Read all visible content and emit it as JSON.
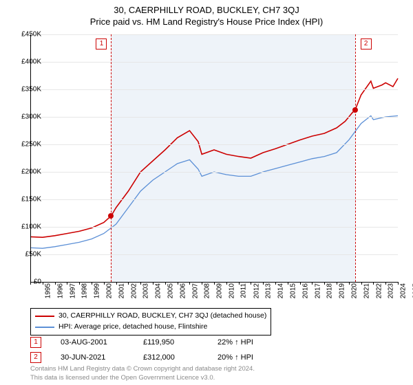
{
  "title_line1": "30, CAERPHILLY ROAD, BUCKLEY, CH7 3QJ",
  "title_line2": "Price paid vs. HM Land Registry's House Price Index (HPI)",
  "chart": {
    "type": "line",
    "background_color": "#ffffff",
    "band_color": "#eef3f9",
    "grid_color": "#e6e6e6",
    "axis_color": "#000000",
    "y": {
      "min": 0,
      "max": 450000,
      "step": 50000,
      "labels": [
        "£0",
        "£50K",
        "£100K",
        "£150K",
        "£200K",
        "£250K",
        "£300K",
        "£350K",
        "£400K",
        "£450K"
      ]
    },
    "x": {
      "min": 1995,
      "max": 2025,
      "labels": [
        "1995",
        "1996",
        "1997",
        "1998",
        "1999",
        "2000",
        "2001",
        "2002",
        "2003",
        "2004",
        "2005",
        "2006",
        "2007",
        "2008",
        "2009",
        "2010",
        "2011",
        "2012",
        "2013",
        "2014",
        "2015",
        "2016",
        "2017",
        "2018",
        "2019",
        "2020",
        "2021",
        "2022",
        "2023",
        "2024",
        "2025"
      ],
      "band_start": 2001.6,
      "band_end": 2021.5
    },
    "series": [
      {
        "name": "property",
        "label": "30, CAERPHILLY ROAD, BUCKLEY, CH7 3QJ (detached house)",
        "color": "#cc0000",
        "width": 1.6,
        "points": [
          [
            1995,
            82000
          ],
          [
            1996,
            81000
          ],
          [
            1997,
            84000
          ],
          [
            1998,
            88000
          ],
          [
            1999,
            92000
          ],
          [
            2000,
            98000
          ],
          [
            2001,
            108000
          ],
          [
            2001.6,
            119950
          ],
          [
            2002,
            135000
          ],
          [
            2003,
            165000
          ],
          [
            2004,
            200000
          ],
          [
            2005,
            220000
          ],
          [
            2006,
            240000
          ],
          [
            2007,
            262000
          ],
          [
            2008,
            275000
          ],
          [
            2008.7,
            255000
          ],
          [
            2009,
            232000
          ],
          [
            2010,
            240000
          ],
          [
            2011,
            232000
          ],
          [
            2012,
            228000
          ],
          [
            2013,
            225000
          ],
          [
            2014,
            235000
          ],
          [
            2015,
            242000
          ],
          [
            2016,
            250000
          ],
          [
            2017,
            258000
          ],
          [
            2018,
            265000
          ],
          [
            2019,
            270000
          ],
          [
            2020,
            280000
          ],
          [
            2020.7,
            292000
          ],
          [
            2021.3,
            308000
          ],
          [
            2021.5,
            312000
          ],
          [
            2022,
            340000
          ],
          [
            2022.8,
            365000
          ],
          [
            2023,
            352000
          ],
          [
            2023.7,
            358000
          ],
          [
            2024,
            362000
          ],
          [
            2024.6,
            355000
          ],
          [
            2025,
            370000
          ]
        ]
      },
      {
        "name": "hpi",
        "label": "HPI: Average price, detached house, Flintshire",
        "color": "#5b8fd6",
        "width": 1.3,
        "points": [
          [
            1995,
            62000
          ],
          [
            1996,
            61000
          ],
          [
            1997,
            64000
          ],
          [
            1998,
            68000
          ],
          [
            1999,
            72000
          ],
          [
            2000,
            78000
          ],
          [
            2001,
            88000
          ],
          [
            2002,
            105000
          ],
          [
            2003,
            135000
          ],
          [
            2004,
            165000
          ],
          [
            2005,
            185000
          ],
          [
            2006,
            200000
          ],
          [
            2007,
            215000
          ],
          [
            2008,
            222000
          ],
          [
            2008.7,
            205000
          ],
          [
            2009,
            192000
          ],
          [
            2010,
            200000
          ],
          [
            2011,
            195000
          ],
          [
            2012,
            192000
          ],
          [
            2013,
            192000
          ],
          [
            2014,
            200000
          ],
          [
            2015,
            206000
          ],
          [
            2016,
            212000
          ],
          [
            2017,
            218000
          ],
          [
            2018,
            224000
          ],
          [
            2019,
            228000
          ],
          [
            2020,
            235000
          ],
          [
            2021,
            258000
          ],
          [
            2022,
            288000
          ],
          [
            2022.8,
            302000
          ],
          [
            2023,
            295000
          ],
          [
            2024,
            300000
          ],
          [
            2025,
            302000
          ]
        ]
      }
    ],
    "markers": [
      {
        "id": "1",
        "year": 2001.6,
        "value": 119950,
        "label_side": "left"
      },
      {
        "id": "2",
        "year": 2021.5,
        "value": 312000,
        "label_side": "right"
      }
    ]
  },
  "legend": {
    "items": [
      {
        "color": "#cc0000",
        "text": "30, CAERPHILLY ROAD, BUCKLEY, CH7 3QJ (detached house)"
      },
      {
        "color": "#5b8fd6",
        "text": "HPI: Average price, detached house, Flintshire"
      }
    ]
  },
  "annotations": [
    {
      "id": "1",
      "date": "03-AUG-2001",
      "price": "£119,950",
      "delta": "22% ↑ HPI"
    },
    {
      "id": "2",
      "date": "30-JUN-2021",
      "price": "£312,000",
      "delta": "20% ↑ HPI"
    }
  ],
  "footer_line1": "Contains HM Land Registry data © Crown copyright and database right 2024.",
  "footer_line2": "This data is licensed under the Open Government Licence v3.0."
}
